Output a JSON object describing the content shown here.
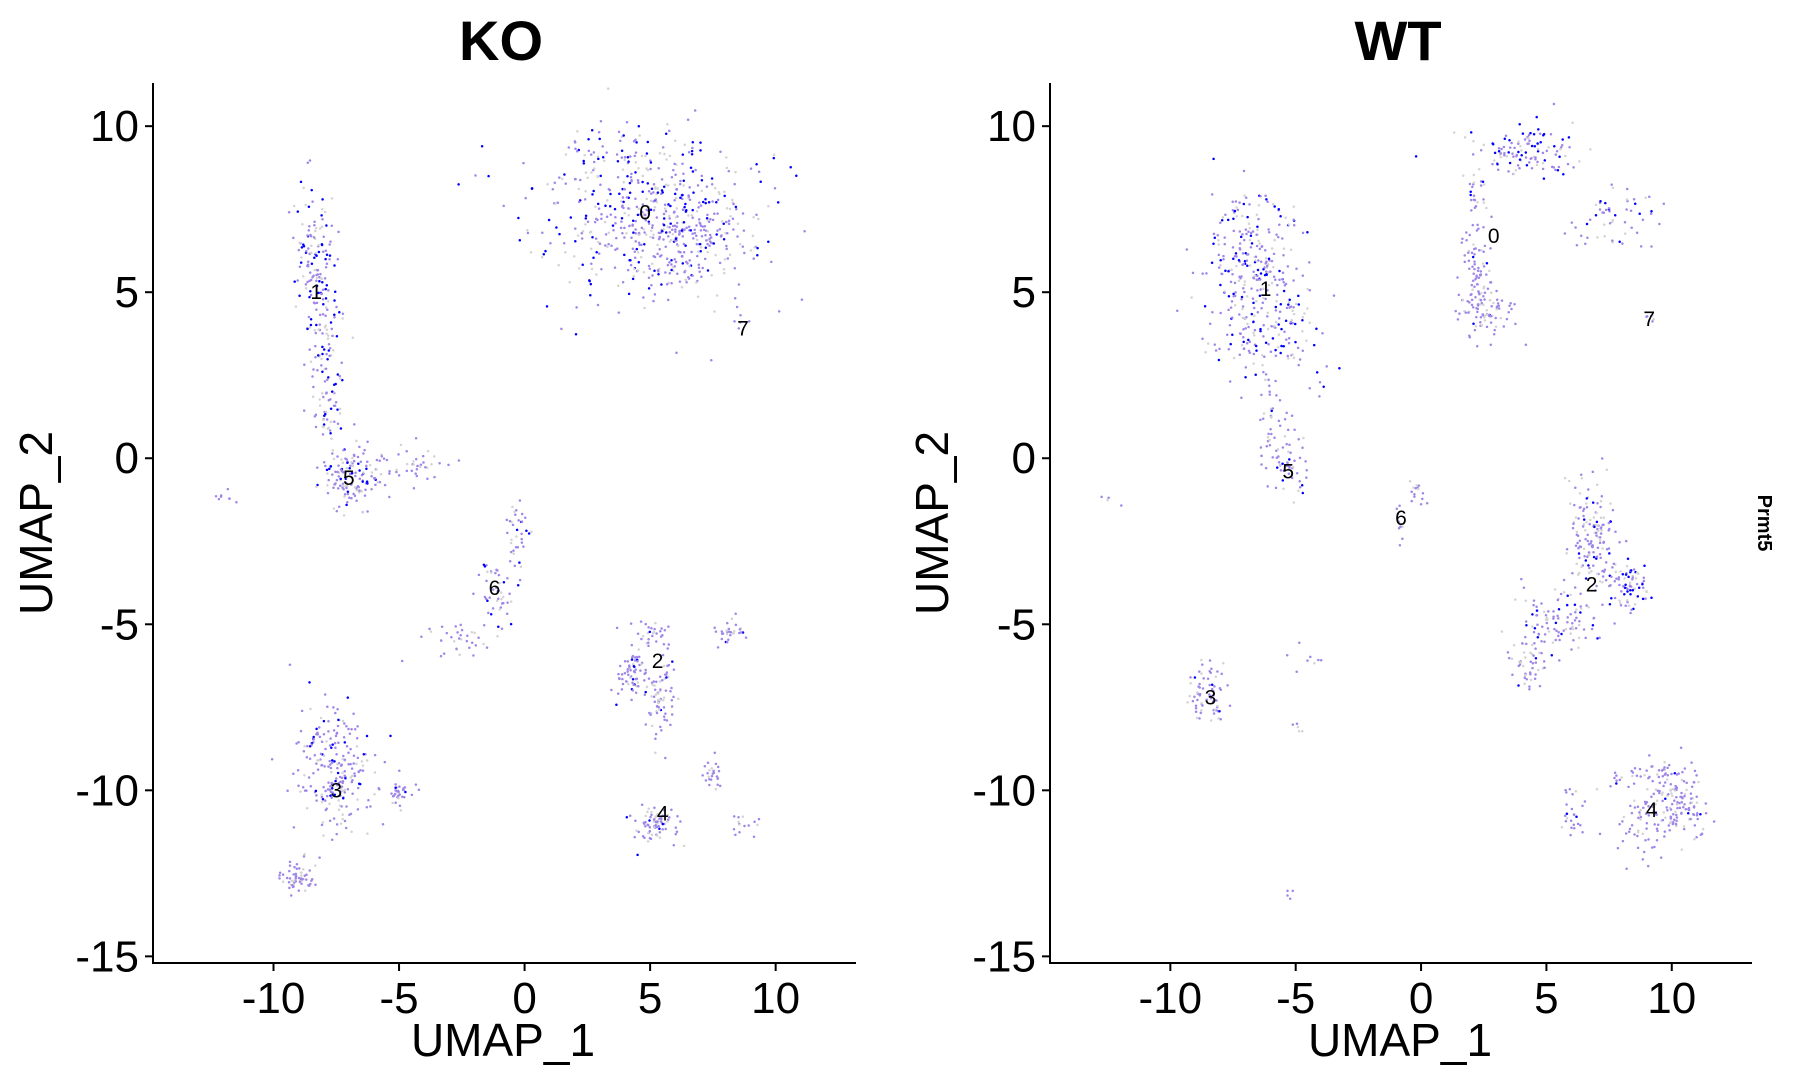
{
  "chart_data": [
    {
      "type": "scatter",
      "title": "KO",
      "xlabel": "UMAP_1",
      "ylabel": "UMAP_2",
      "xlim": [
        -14.8,
        13.2
      ],
      "ylim": [
        -15.2,
        11.3
      ],
      "xticks": [
        "-10",
        "-5",
        "0",
        "5",
        "10"
      ],
      "yticks": [
        "-15",
        "-10",
        "-5",
        "0",
        "5",
        "10"
      ],
      "grid": false,
      "color_low": "#d3d3d3",
      "color_mid": "#9f86e8",
      "color_high": "#0000ff",
      "cluster_labels": [
        {
          "label": "0",
          "x": 4.8,
          "y": 7.4
        },
        {
          "label": "1",
          "x": -8.3,
          "y": 5.0
        },
        {
          "label": "2",
          "x": 5.3,
          "y": -6.1
        },
        {
          "label": "3",
          "x": -7.5,
          "y": -10.0
        },
        {
          "label": "4",
          "x": 5.5,
          "y": -10.7
        },
        {
          "label": "5",
          "x": -7.0,
          "y": -0.6
        },
        {
          "label": "6",
          "x": -1.2,
          "y": -3.9
        },
        {
          "label": "7",
          "x": 8.7,
          "y": 3.9
        }
      ],
      "clusters": [
        {
          "x": 4.6,
          "y": 7.5,
          "sx": 2.2,
          "sy": 1.3,
          "n": 520,
          "hi": 0.26
        },
        {
          "x": 6.3,
          "y": 6.6,
          "sx": 1.3,
          "sy": 0.7,
          "n": 160,
          "hi": 0.12
        },
        {
          "x": -8.4,
          "y": 6.2,
          "sx": 0.45,
          "sy": 1.0,
          "n": 110,
          "hi": 0.35
        },
        {
          "x": -8.1,
          "y": 3.8,
          "sx": 0.35,
          "sy": 1.2,
          "n": 90,
          "hi": 0.3
        },
        {
          "x": -7.7,
          "y": 1.4,
          "sx": 0.3,
          "sy": 0.8,
          "n": 50,
          "hi": 0.3
        },
        {
          "x": -6.8,
          "y": -0.6,
          "sx": 0.6,
          "sy": 0.45,
          "n": 140,
          "hi": 0.14
        },
        {
          "x": -4.6,
          "y": -0.3,
          "sx": 0.7,
          "sy": 0.3,
          "n": 40,
          "hi": 0.05
        },
        {
          "x": -0.3,
          "y": -2.2,
          "sx": 0.25,
          "sy": 0.6,
          "n": 35,
          "hi": 0.2
        },
        {
          "x": -1.2,
          "y": -4.0,
          "sx": 0.4,
          "sy": 0.5,
          "n": 45,
          "hi": 0.2
        },
        {
          "x": -2.8,
          "y": -5.4,
          "sx": 0.7,
          "sy": 0.3,
          "n": 35,
          "hi": 0.05
        },
        {
          "x": 4.3,
          "y": -6.4,
          "sx": 0.35,
          "sy": 0.4,
          "n": 70,
          "hi": 0.06
        },
        {
          "x": 5.4,
          "y": -7.2,
          "sx": 0.35,
          "sy": 0.6,
          "n": 70,
          "hi": 0.06
        },
        {
          "x": 8.2,
          "y": -5.2,
          "sx": 0.3,
          "sy": 0.2,
          "n": 30,
          "hi": 0.05
        },
        {
          "x": 5.2,
          "y": -5.3,
          "sx": 0.5,
          "sy": 0.2,
          "n": 30,
          "hi": 0.05
        },
        {
          "x": -7.6,
          "y": -9.3,
          "sx": 0.8,
          "sy": 0.9,
          "n": 230,
          "hi": 0.1
        },
        {
          "x": -5.0,
          "y": -10.1,
          "sx": 0.3,
          "sy": 0.25,
          "n": 35,
          "hi": 0.04
        },
        {
          "x": -9.0,
          "y": -12.6,
          "sx": 0.35,
          "sy": 0.25,
          "n": 60,
          "hi": 0.04
        },
        {
          "x": 5.1,
          "y": -11.0,
          "sx": 0.45,
          "sy": 0.3,
          "n": 80,
          "hi": 0.06
        },
        {
          "x": 7.5,
          "y": -9.6,
          "sx": 0.25,
          "sy": 0.25,
          "n": 25,
          "hi": 0.04
        },
        {
          "x": 8.8,
          "y": -11.0,
          "sx": 0.3,
          "sy": 0.15,
          "n": 15,
          "hi": 0.04
        },
        {
          "x": 8.6,
          "y": 4.0,
          "sx": 0.15,
          "sy": 0.15,
          "n": 6,
          "hi": 0.0
        },
        {
          "x": -12.0,
          "y": -1.2,
          "sx": 0.4,
          "sy": 0.15,
          "n": 8,
          "hi": 0.0
        }
      ]
    },
    {
      "type": "scatter",
      "title": "WT",
      "xlabel": "UMAP_1",
      "ylabel": "UMAP_2",
      "xlim": [
        -14.8,
        13.2
      ],
      "ylim": [
        -15.2,
        11.3
      ],
      "xticks": [
        "-10",
        "-5",
        "0",
        "5",
        "10"
      ],
      "yticks": [
        "-15",
        "-10",
        "-5",
        "0",
        "5",
        "10"
      ],
      "grid": false,
      "color_low": "#d3d3d3",
      "color_mid": "#9f86e8",
      "color_high": "#0000ff",
      "cluster_labels": [
        {
          "label": "0",
          "x": 2.9,
          "y": 6.7
        },
        {
          "label": "1",
          "x": -6.2,
          "y": 5.1
        },
        {
          "label": "2",
          "x": 6.8,
          "y": -3.8
        },
        {
          "label": "3",
          "x": -8.4,
          "y": -7.2
        },
        {
          "label": "4",
          "x": 9.2,
          "y": -10.6
        },
        {
          "label": "5",
          "x": -5.3,
          "y": -0.4
        },
        {
          "label": "6",
          "x": -0.8,
          "y": -1.8
        },
        {
          "label": "7",
          "x": 9.1,
          "y": 4.2
        }
      ],
      "clusters": [
        {
          "x": -6.8,
          "y": 6.2,
          "sx": 1.0,
          "sy": 1.0,
          "n": 200,
          "hi": 0.25
        },
        {
          "x": -6.2,
          "y": 4.0,
          "sx": 1.1,
          "sy": 0.9,
          "n": 180,
          "hi": 0.25
        },
        {
          "x": -5.5,
          "y": 0.0,
          "sx": 0.5,
          "sy": 0.7,
          "n": 70,
          "hi": 0.15
        },
        {
          "x": -6.2,
          "y": 1.5,
          "sx": 0.3,
          "sy": 0.6,
          "n": 18,
          "hi": 0.05
        },
        {
          "x": 2.2,
          "y": 5.2,
          "sx": 0.35,
          "sy": 0.9,
          "n": 110,
          "hi": 0.05
        },
        {
          "x": 3.0,
          "y": 4.3,
          "sx": 0.6,
          "sy": 0.25,
          "n": 40,
          "hi": 0.03
        },
        {
          "x": 4.2,
          "y": 9.2,
          "sx": 1.2,
          "sy": 0.4,
          "n": 120,
          "hi": 0.28
        },
        {
          "x": 7.6,
          "y": 7.2,
          "sx": 0.9,
          "sy": 0.5,
          "n": 55,
          "hi": 0.12
        },
        {
          "x": 2.2,
          "y": 8.0,
          "sx": 0.3,
          "sy": 0.6,
          "n": 25,
          "hi": 0.15
        },
        {
          "x": 9.1,
          "y": 4.2,
          "sx": 0.15,
          "sy": 0.15,
          "n": 6,
          "hi": 0.0
        },
        {
          "x": 6.8,
          "y": -2.5,
          "sx": 0.5,
          "sy": 0.9,
          "n": 160,
          "hi": 0.08
        },
        {
          "x": 8.3,
          "y": -3.9,
          "sx": 0.4,
          "sy": 0.4,
          "n": 70,
          "hi": 0.3
        },
        {
          "x": 5.3,
          "y": -5.0,
          "sx": 0.8,
          "sy": 0.5,
          "n": 100,
          "hi": 0.12
        },
        {
          "x": 4.3,
          "y": -6.3,
          "sx": 0.4,
          "sy": 0.4,
          "n": 40,
          "hi": 0.06
        },
        {
          "x": -0.1,
          "y": -1.0,
          "sx": 0.15,
          "sy": 0.15,
          "n": 15,
          "hi": 0.0
        },
        {
          "x": -0.9,
          "y": -2.1,
          "sx": 0.1,
          "sy": 0.3,
          "n": 10,
          "hi": 0.0
        },
        {
          "x": -8.5,
          "y": -7.2,
          "sx": 0.35,
          "sy": 0.45,
          "n": 70,
          "hi": 0.1
        },
        {
          "x": 10.2,
          "y": -10.4,
          "sx": 0.6,
          "sy": 0.5,
          "n": 130,
          "hi": 0.04
        },
        {
          "x": 8.9,
          "y": -10.9,
          "sx": 0.5,
          "sy": 0.5,
          "n": 60,
          "hi": 0.04
        },
        {
          "x": 9.0,
          "y": -9.5,
          "sx": 0.9,
          "sy": 0.25,
          "n": 40,
          "hi": 0.04
        },
        {
          "x": 6.1,
          "y": -10.6,
          "sx": 0.3,
          "sy": 0.6,
          "n": 25,
          "hi": 0.04
        },
        {
          "x": -4.5,
          "y": -6.0,
          "sx": 0.4,
          "sy": 0.25,
          "n": 8,
          "hi": 0.0
        },
        {
          "x": -5.0,
          "y": -8.2,
          "sx": 0.15,
          "sy": 0.2,
          "n": 5,
          "hi": 0.0
        },
        {
          "x": -5.2,
          "y": -13.1,
          "sx": 0.1,
          "sy": 0.1,
          "n": 4,
          "hi": 0.0
        },
        {
          "x": -12.6,
          "y": -1.3,
          "sx": 0.2,
          "sy": 0.1,
          "n": 4,
          "hi": 0.0
        }
      ]
    }
  ],
  "side_label": "Prmt5"
}
